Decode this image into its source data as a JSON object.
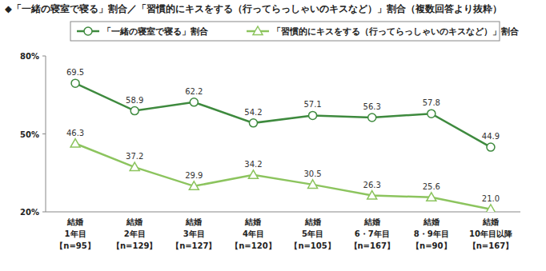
{
  "chart_data": {
    "type": "line",
    "title": "◆「一緒の寝室で寝る」割合／「習慣的にキスをする（行ってらっしゃいのキスなど）」割合（複数回答より抜粋）",
    "categories": [
      "結婚\n1年目\n【n=95】",
      "結婚\n2年目\n【n=129】",
      "結婚\n3年目\n【n=127】",
      "結婚\n4年目\n【n=120】",
      "結婚\n5年目\n【n=105】",
      "結婚\n6・7年目\n【n=167】",
      "結婚\n8・9年目\n【n=90】",
      "結婚\n10年目以降\n【n=167】"
    ],
    "series": [
      {
        "name": "「一緒の寝室で寝る」割合",
        "color": "#3e8a3e",
        "marker": "circle",
        "values": [
          69.5,
          58.9,
          62.2,
          54.2,
          57.1,
          56.3,
          57.8,
          44.9
        ],
        "value_labels": [
          "69.5",
          "58.9",
          "62.2",
          "54.2",
          "57.1",
          "56.3",
          "57.8",
          "44.9"
        ]
      },
      {
        "name": "「習慣的にキスをする（行ってらっしゃいのキスなど）」割合",
        "color": "#8cc45e",
        "marker": "triangle",
        "values": [
          46.3,
          37.2,
          29.9,
          34.2,
          30.5,
          26.3,
          25.6,
          21.0
        ],
        "value_labels": [
          "46.3",
          "37.2",
          "29.9",
          "34.2",
          "30.5",
          "26.3",
          "25.6",
          "21.0"
        ]
      }
    ],
    "ylim": [
      20,
      80
    ],
    "yticks": [
      {
        "value": 20,
        "label": "20%"
      },
      {
        "value": 50,
        "label": "50%"
      },
      {
        "value": 80,
        "label": "80%"
      }
    ],
    "grid": false,
    "legend": "top",
    "data_labels": true
  }
}
